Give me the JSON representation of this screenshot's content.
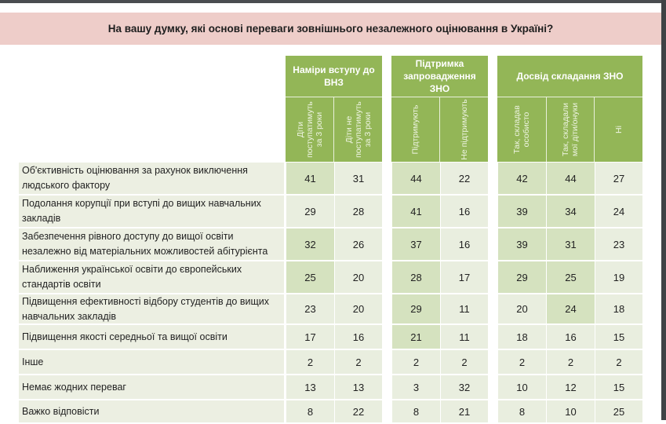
{
  "title": "На вашу думку, які основі переваги зовнішнього незалежного оцінювання в Україні?",
  "colors": {
    "title_band": "#eecdc9",
    "header_green": "#93b657",
    "cell_light": "#e9eedf",
    "cell_highlight": "#d5e2bf",
    "label_bg": "#ecefe2"
  },
  "groups": [
    {
      "label": "Наміри вступу до ВНЗ",
      "columns": [
        "Діти\nпоступатимуть\nза 3 роки",
        "Діти не\nпоступатимуть\nза 3 роки"
      ]
    },
    {
      "label": "Підтримка запровадження ЗНО",
      "columns": [
        "Підтримують",
        "Не підтримують"
      ]
    },
    {
      "label": "Досвід складання ЗНО",
      "columns": [
        "Так, складав\nособисто",
        "Так, складали\nмої діти/онуки",
        "Ні"
      ]
    }
  ],
  "rows": [
    {
      "label": "Об'єктивність оцінювання за рахунок виключення людського фактору",
      "values": [
        "41",
        "31",
        "44",
        "22",
        "42",
        "44",
        "27"
      ],
      "highlight": [
        true,
        false,
        true,
        false,
        true,
        true,
        false
      ]
    },
    {
      "label": "Подолання корупції при вступі до вищих навчальних закладів",
      "values": [
        "29",
        "28",
        "41",
        "16",
        "39",
        "34",
        "24"
      ],
      "highlight": [
        false,
        false,
        true,
        false,
        true,
        true,
        false
      ]
    },
    {
      "label": "Забезпечення рівного доступу до вищої освіти незалежно від матеріальних можливостей абітурієнта",
      "values": [
        "32",
        "26",
        "37",
        "16",
        "39",
        "31",
        "23"
      ],
      "highlight": [
        true,
        false,
        true,
        false,
        true,
        true,
        false
      ]
    },
    {
      "label": "Наближення української освіти до європейських стандартів освіти",
      "values": [
        "25",
        "20",
        "28",
        "17",
        "29",
        "25",
        "19"
      ],
      "highlight": [
        true,
        false,
        true,
        false,
        true,
        true,
        false
      ]
    },
    {
      "label": "Підвищення ефективності відбору студентів до вищих навчальних закладів",
      "values": [
        "23",
        "20",
        "29",
        "11",
        "20",
        "24",
        "18"
      ],
      "highlight": [
        false,
        false,
        true,
        false,
        false,
        true,
        false
      ]
    },
    {
      "label": "Підвищення якості середньої та вищої освіти",
      "values": [
        "17",
        "16",
        "21",
        "11",
        "18",
        "16",
        "15"
      ],
      "highlight": [
        false,
        false,
        true,
        false,
        false,
        false,
        false
      ]
    },
    {
      "label": "Інше",
      "values": [
        "2",
        "2",
        "2",
        "2",
        "2",
        "2",
        "2"
      ],
      "highlight": [
        false,
        false,
        false,
        false,
        false,
        false,
        false
      ]
    },
    {
      "label": "Немає жодних переваг",
      "values": [
        "13",
        "13",
        "3",
        "32",
        "10",
        "12",
        "15"
      ],
      "highlight": [
        false,
        false,
        false,
        false,
        false,
        false,
        false
      ]
    },
    {
      "label": "Важко відповісти",
      "values": [
        "8",
        "22",
        "8",
        "21",
        "8",
        "10",
        "25"
      ],
      "highlight": [
        false,
        false,
        false,
        false,
        false,
        false,
        false
      ]
    }
  ]
}
